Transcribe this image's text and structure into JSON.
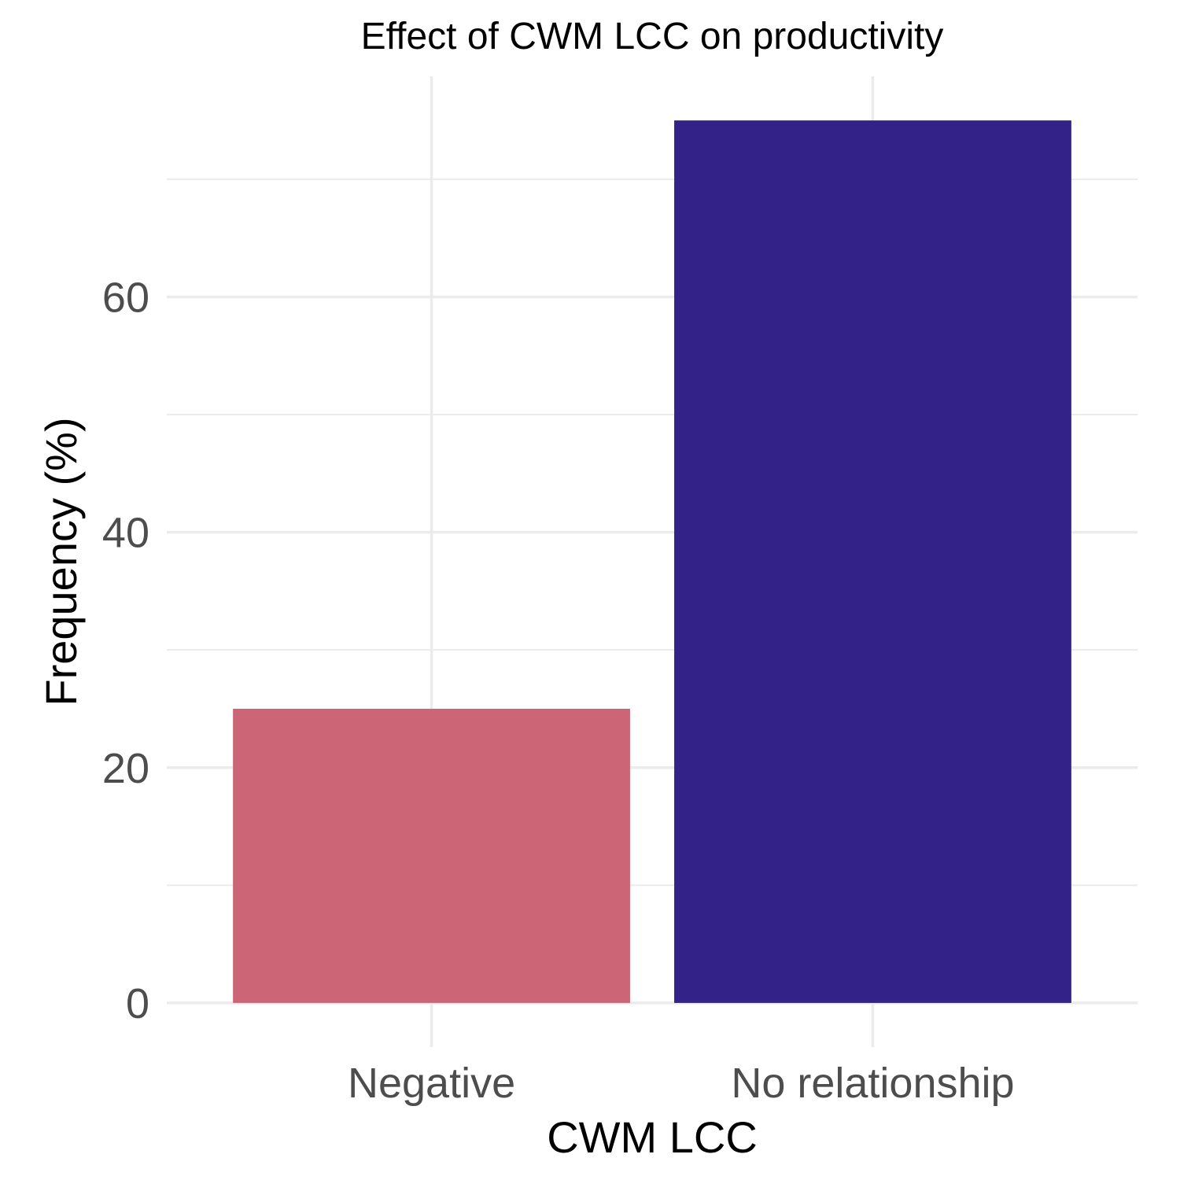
{
  "chart_data": {
    "type": "bar",
    "title": "Effect of CWM LCC on productivity",
    "xlabel": "CWM LCC",
    "ylabel": "Frequency (%)",
    "categories": [
      "Negative",
      "No relationship"
    ],
    "values": [
      25,
      75
    ],
    "colors": [
      "#cc6677",
      "#332288"
    ],
    "ylim": [
      -3.75,
      78.75
    ],
    "yticks": [
      0,
      20,
      40,
      60
    ],
    "ytick_labels": [
      "0",
      "20",
      "40",
      "60"
    ],
    "grid": true,
    "legend": "none"
  }
}
